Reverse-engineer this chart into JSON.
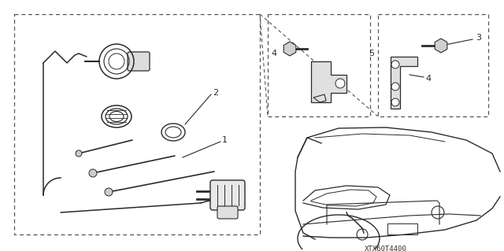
{
  "bg_color": "#ffffff",
  "line_color": "#2a2a2a",
  "dash_color": "#555555",
  "fig_width": 6.4,
  "fig_height": 3.19,
  "dpi": 100,
  "watermark": "XTX60T4400"
}
